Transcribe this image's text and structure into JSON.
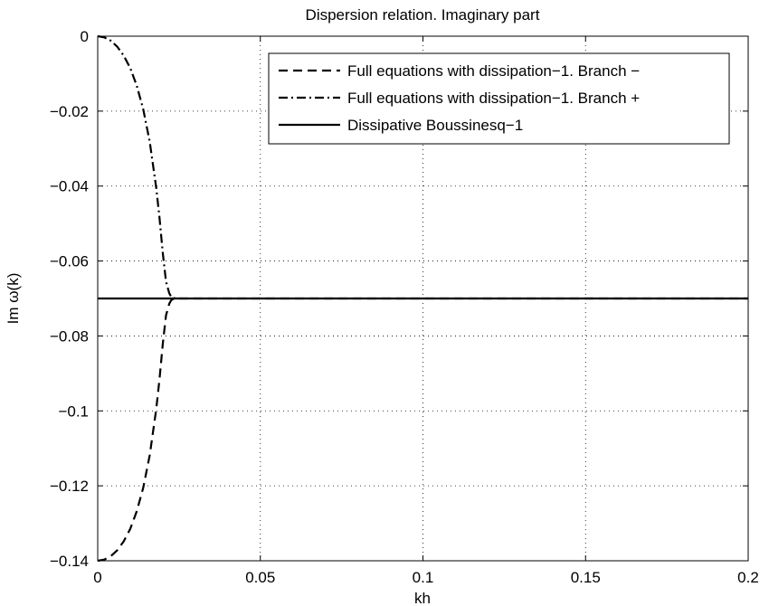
{
  "chart_data": {
    "type": "line",
    "title": "Dispersion relation. Imaginary part",
    "xlabel": "kh",
    "ylabel": "Im ω(k)",
    "xlim": [
      0,
      0.2
    ],
    "ylim": [
      -0.14,
      0
    ],
    "x_ticks": [
      0,
      0.05,
      0.1,
      0.15,
      0.2
    ],
    "x_tick_labels": [
      "0",
      "0.05",
      "0.1",
      "0.15",
      "0.2"
    ],
    "y_ticks": [
      0,
      -0.02,
      -0.04,
      -0.06,
      -0.08,
      -0.1,
      -0.12,
      -0.14
    ],
    "y_tick_labels": [
      "0",
      "−0.02",
      "−0.04",
      "−0.06",
      "−0.08",
      "−0.1",
      "−0.12",
      "−0.14"
    ],
    "grid": true,
    "legend_position": "top-right",
    "series": [
      {
        "name": "Full equations with dissipation−1. Branch −",
        "style": "dashed",
        "color": "#000000",
        "x": [
          0,
          0.002,
          0.004,
          0.006,
          0.008,
          0.01,
          0.012,
          0.014,
          0.016,
          0.018,
          0.019,
          0.02,
          0.021,
          0.022,
          0.0225,
          0.023,
          0.0235,
          0.024,
          0.025,
          0.03,
          0.05,
          0.1,
          0.15,
          0.2
        ],
        "y": [
          -0.14,
          -0.1397,
          -0.1388,
          -0.1372,
          -0.1348,
          -0.1315,
          -0.1268,
          -0.1205,
          -0.1118,
          -0.0995,
          -0.0915,
          -0.0822,
          -0.0745,
          -0.0714,
          -0.0706,
          -0.0702,
          -0.0701,
          -0.07,
          -0.07,
          -0.07,
          -0.07,
          -0.07,
          -0.07,
          -0.07
        ]
      },
      {
        "name": "Full equations with dissipation−1. Branch +",
        "style": "dashdot",
        "color": "#000000",
        "x": [
          0,
          0.002,
          0.004,
          0.006,
          0.008,
          0.01,
          0.012,
          0.014,
          0.016,
          0.018,
          0.019,
          0.02,
          0.021,
          0.022,
          0.0225,
          0.023,
          0.0235,
          0.024
        ],
        "y": [
          0,
          -0.0003,
          -0.0012,
          -0.0028,
          -0.0052,
          -0.0085,
          -0.0132,
          -0.0195,
          -0.0282,
          -0.0405,
          -0.0485,
          -0.0578,
          -0.0655,
          -0.0686,
          -0.0694,
          -0.0698,
          -0.0699,
          -0.07
        ]
      },
      {
        "name": "Dissipative Boussinesq−1",
        "style": "solid",
        "color": "#000000",
        "x": [
          0,
          0.2
        ],
        "y": [
          -0.07,
          -0.07
        ]
      }
    ]
  }
}
